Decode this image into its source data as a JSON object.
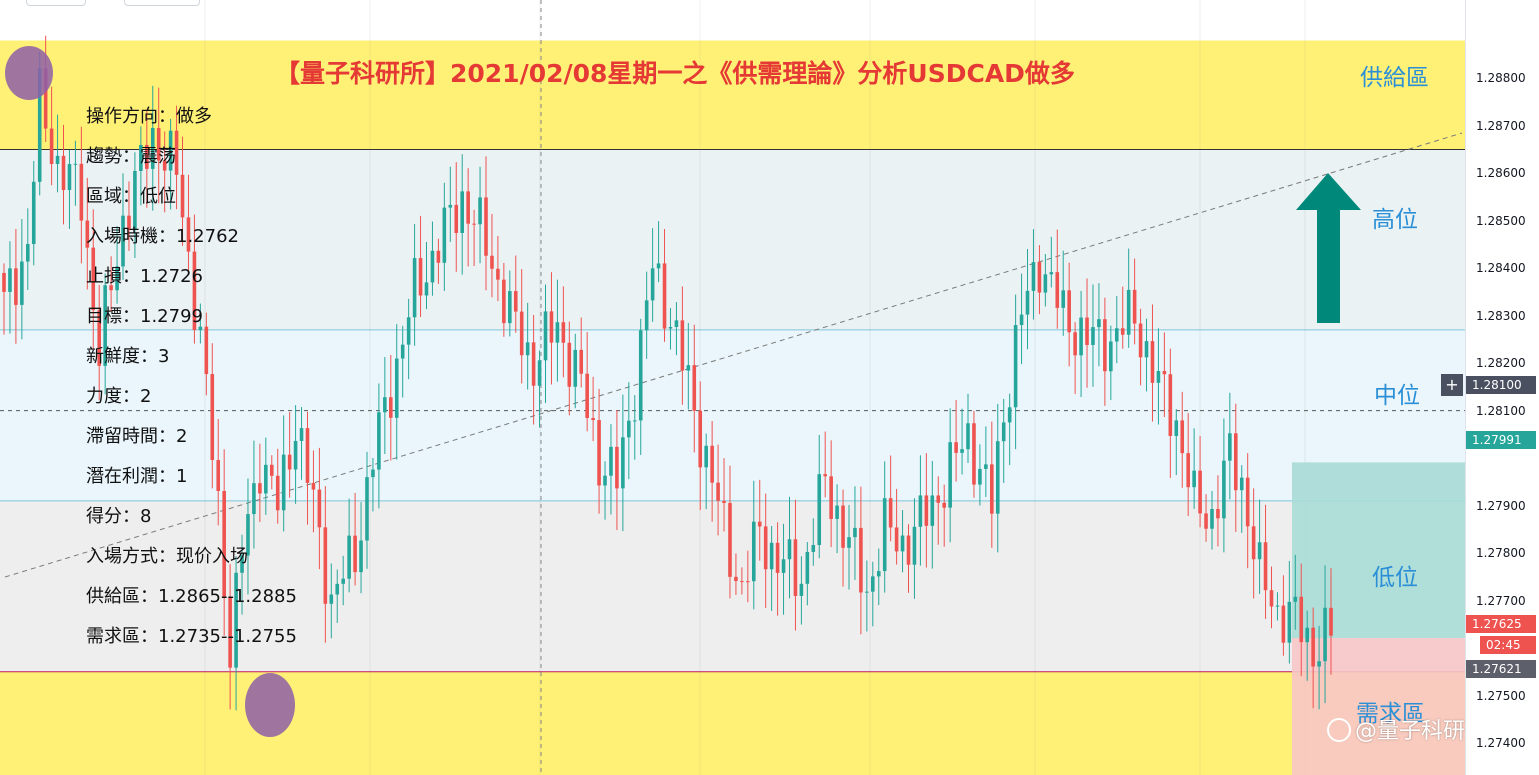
{
  "title": "【量子科研所】2021/02/08星期一之《供需理論》分析USDCAD做多",
  "zones": {
    "supply_label": "供給區",
    "high_label": "高位",
    "mid_label": "中位",
    "low_label": "低位",
    "demand_label": "需求區"
  },
  "info": [
    "操作方向：做多",
    "趨勢：震荡",
    "區域：低位",
    "入場時機：1.2762",
    "止損：1.2726",
    "目標：1.2799",
    "新鮮度：3",
    "力度：2",
    "滯留時間：2",
    "潛在利潤：1",
    "得分：8",
    "入場方式：现价入场",
    "供給區：1.2865--1.2885",
    "需求區：1.2735--1.2755"
  ],
  "price_tags": {
    "crosshair": "1.28100",
    "target": "1.27991",
    "current": "1.27625",
    "countdown": "02:45",
    "entry": "1.27621"
  },
  "watermark": "@量子科研究",
  "colors": {
    "up": "#26a69a",
    "down": "#ef5350",
    "supply_zone": "#fff176",
    "demand_zone": "#fff176",
    "target_box": "#a8dcd6",
    "stop_box": "#f7c6c6",
    "arrow": "#00897b",
    "title": "#e53935",
    "zone_label": "#2a8fd6"
  },
  "chart_data": {
    "type": "candlestick",
    "symbol": "USDCAD",
    "y_ticks": [
      "1.28800",
      "1.28700",
      "1.28600",
      "1.28500",
      "1.28400",
      "1.28300",
      "1.28200",
      "1.28100",
      "1.27900",
      "1.27800",
      "1.27700",
      "1.27500",
      "1.27400"
    ],
    "y_tick_values": [
      1.288,
      1.287,
      1.286,
      1.285,
      1.284,
      1.283,
      1.282,
      1.281,
      1.279,
      1.278,
      1.277,
      1.275,
      1.274
    ],
    "ylim": [
      1.2736,
      1.2895
    ],
    "zones": {
      "supply": [
        1.2865,
        1.2885
      ],
      "high": [
        1.2827,
        1.2865
      ],
      "mid": [
        1.2791,
        1.2827
      ],
      "low": [
        1.2755,
        1.2791
      ],
      "demand": [
        1.2735,
        1.2755
      ]
    },
    "target": 1.27991,
    "entry": 1.27621,
    "current": 1.27625,
    "crosshair": 1.281,
    "waypoints": [
      [
        0,
        1.2832
      ],
      [
        4,
        1.2845
      ],
      [
        6,
        1.2875
      ],
      [
        9,
        1.2862
      ],
      [
        13,
        1.2855
      ],
      [
        16,
        1.2822
      ],
      [
        20,
        1.285
      ],
      [
        25,
        1.2868
      ],
      [
        29,
        1.286
      ],
      [
        33,
        1.2825
      ],
      [
        36,
        1.279
      ],
      [
        38,
        1.276
      ],
      [
        40,
        1.278
      ],
      [
        43,
        1.28
      ],
      [
        46,
        1.279
      ],
      [
        49,
        1.2808
      ],
      [
        52,
        1.279
      ],
      [
        55,
        1.277
      ],
      [
        59,
        1.278
      ],
      [
        62,
        1.28
      ],
      [
        66,
        1.282
      ],
      [
        69,
        1.2835
      ],
      [
        73,
        1.2845
      ],
      [
        77,
        1.2855
      ],
      [
        81,
        1.2845
      ],
      [
        85,
        1.283
      ],
      [
        89,
        1.282
      ],
      [
        93,
        1.2828
      ],
      [
        97,
        1.2815
      ],
      [
        100,
        1.28
      ],
      [
        103,
        1.2795
      ],
      [
        106,
        1.2815
      ],
      [
        109,
        1.284
      ],
      [
        112,
        1.283
      ],
      [
        115,
        1.2815
      ],
      [
        118,
        1.28
      ],
      [
        121,
        1.2785
      ],
      [
        124,
        1.2772
      ],
      [
        127,
        1.2785
      ],
      [
        130,
        1.2778
      ],
      [
        134,
        1.2775
      ],
      [
        138,
        1.2795
      ],
      [
        142,
        1.2782
      ],
      [
        145,
        1.2772
      ],
      [
        148,
        1.2785
      ],
      [
        151,
        1.2782
      ],
      [
        154,
        1.2786
      ],
      [
        158,
        1.2795
      ],
      [
        162,
        1.2805
      ],
      [
        166,
        1.279
      ],
      [
        168,
        1.281
      ],
      [
        171,
        1.283
      ],
      [
        174,
        1.2842
      ],
      [
        178,
        1.283
      ],
      [
        182,
        1.2825
      ],
      [
        186,
        1.2825
      ],
      [
        190,
        1.283
      ],
      [
        194,
        1.2815
      ],
      [
        197,
        1.2808
      ],
      [
        200,
        1.279
      ],
      [
        203,
        1.2788
      ],
      [
        206,
        1.28
      ],
      [
        208,
        1.2795
      ],
      [
        211,
        1.2775
      ],
      [
        214,
        1.2768
      ],
      [
        217,
        1.2766
      ],
      [
        220,
        1.276
      ],
      [
        223,
        1.2763
      ]
    ]
  }
}
